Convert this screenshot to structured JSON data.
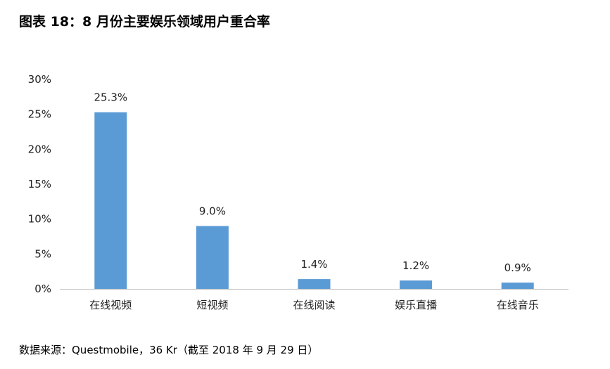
{
  "title": "图表 18：8 月份主要娱乐领域用户重合率",
  "source": "数据来源：Questmobile，36 Kr（截至 2018 年 9 月 29 日）",
  "chart_data": {
    "type": "bar",
    "categories": [
      "在线视频",
      "短视频",
      "在线阅读",
      "娱乐直播",
      "在线音乐"
    ],
    "values": [
      25.3,
      9.0,
      1.4,
      1.2,
      0.9
    ],
    "data_labels": [
      "25.3%",
      "9.0%",
      "1.4%",
      "1.2%",
      "0.9%"
    ],
    "y_ticks": [
      "0%",
      "5%",
      "10%",
      "15%",
      "20%",
      "25%",
      "30%"
    ],
    "ylim": [
      0,
      30
    ],
    "bar_color": "#5b9bd5",
    "grid": false,
    "legend": "none"
  }
}
